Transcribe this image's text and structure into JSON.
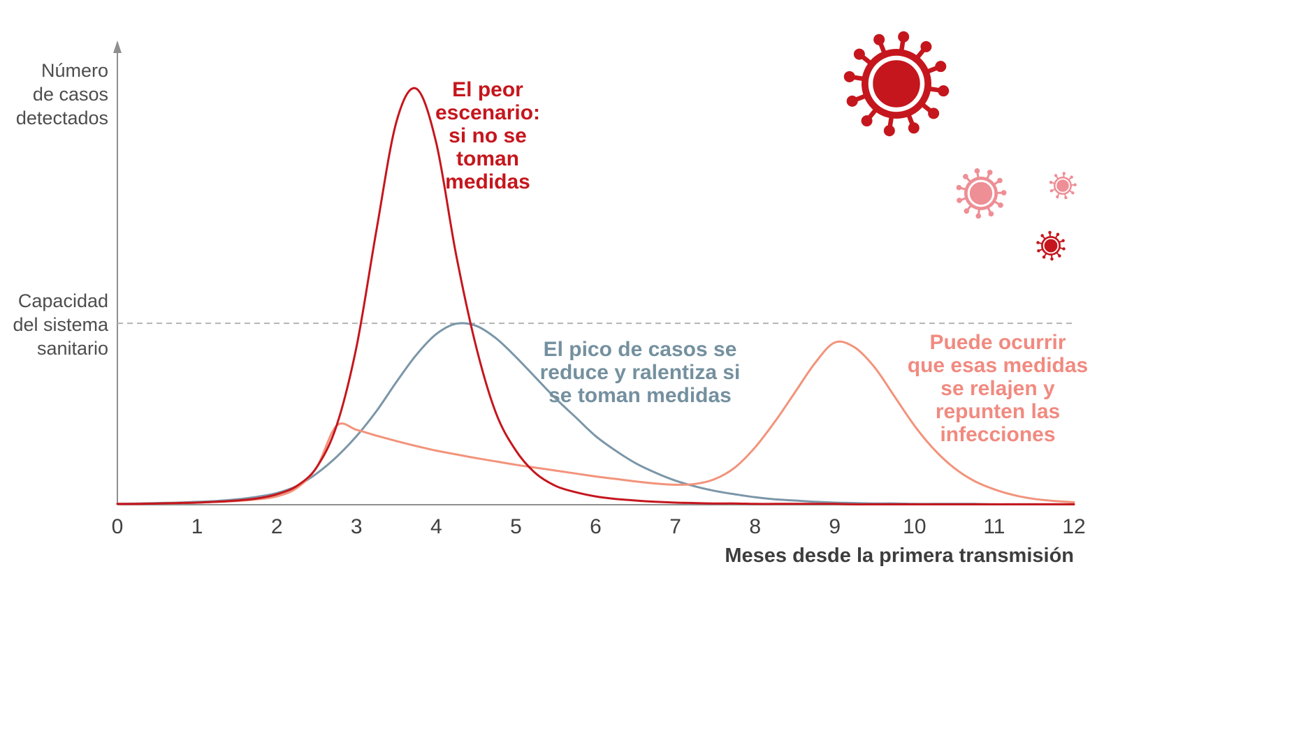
{
  "chart_data": {
    "type": "line",
    "title": "",
    "ylabel": "Número\nde casos\ndetectados",
    "xlabel": "Meses desde la primera transmisión",
    "xlim": [
      0,
      12
    ],
    "ylim": [
      0,
      1.1
    ],
    "x_ticks": [
      0,
      1,
      2,
      3,
      4,
      5,
      6,
      7,
      8,
      9,
      10,
      11,
      12
    ],
    "grid": false,
    "legend_position": "none",
    "axis_color": "#8f8f8f",
    "tick_label_color": "#404040",
    "capacity_line": {
      "label": "Capacidad\ndel sistema\nsanitario",
      "value": 0.436,
      "style": "dashed",
      "color": "#b3b3b3"
    },
    "x": [
      0,
      0.25,
      0.5,
      0.75,
      1,
      1.25,
      1.5,
      1.75,
      2,
      2.25,
      2.5,
      2.75,
      3,
      3.25,
      3.5,
      3.75,
      4,
      4.25,
      4.5,
      4.75,
      5,
      5.25,
      5.5,
      5.75,
      6,
      6.25,
      6.5,
      6.75,
      7,
      7.25,
      7.5,
      7.75,
      8,
      8.25,
      8.5,
      8.75,
      9,
      9.25,
      9.5,
      9.75,
      10,
      10.25,
      10.5,
      10.75,
      11,
      11.25,
      11.5,
      11.75,
      12
    ],
    "series": [
      {
        "name": "peor-escenario",
        "color": "#c5161d",
        "stroke_width": 3,
        "annotation": "El peor\nescenario:\nsi no se\ntoman\nmedidas",
        "annotation_color": "#c5161d",
        "values": [
          0.002,
          0.002,
          0.003,
          0.004,
          0.005,
          0.007,
          0.01,
          0.015,
          0.025,
          0.045,
          0.09,
          0.19,
          0.38,
          0.66,
          0.92,
          1.0,
          0.87,
          0.6,
          0.38,
          0.22,
          0.13,
          0.075,
          0.045,
          0.03,
          0.02,
          0.014,
          0.01,
          0.007,
          0.005,
          0.004,
          0.003,
          0.003,
          0.002,
          0.002,
          0.002,
          0.002,
          0.002,
          0.001,
          0.001,
          0.001,
          0.001,
          0.001,
          0.001,
          0.001,
          0.001,
          0.001,
          0.001,
          0.001,
          0.001
        ]
      },
      {
        "name": "con-medidas",
        "color": "#7b96a8",
        "stroke_width": 3,
        "annotation": "El pico de casos se\nreduce y ralentiza si\nse toman medidas",
        "annotation_color": "#74909f",
        "values": [
          0.002,
          0.003,
          0.004,
          0.005,
          0.007,
          0.009,
          0.013,
          0.019,
          0.028,
          0.045,
          0.075,
          0.115,
          0.165,
          0.225,
          0.295,
          0.36,
          0.41,
          0.435,
          0.43,
          0.4,
          0.355,
          0.305,
          0.255,
          0.21,
          0.165,
          0.13,
          0.1,
          0.077,
          0.058,
          0.044,
          0.033,
          0.025,
          0.018,
          0.013,
          0.01,
          0.007,
          0.005,
          0.004,
          0.003,
          0.003,
          0.002,
          0.002,
          0.002,
          0.002,
          0.001,
          0.001,
          0.001,
          0.001,
          0.001
        ]
      },
      {
        "name": "rebrote",
        "color": "#f2937b",
        "stroke_width": 3,
        "annotation": "Puede ocurrir\nque esas medidas\nse relajen y\nrepunten las\ninfecciones",
        "annotation_color": "#f18a80",
        "values": [
          0.002,
          0.002,
          0.003,
          0.004,
          0.005,
          0.007,
          0.009,
          0.013,
          0.02,
          0.04,
          0.09,
          0.19,
          0.18,
          0.166,
          0.153,
          0.141,
          0.13,
          0.121,
          0.112,
          0.104,
          0.096,
          0.089,
          0.082,
          0.075,
          0.068,
          0.062,
          0.056,
          0.051,
          0.048,
          0.05,
          0.062,
          0.09,
          0.138,
          0.2,
          0.27,
          0.34,
          0.39,
          0.378,
          0.33,
          0.26,
          0.19,
          0.132,
          0.088,
          0.057,
          0.037,
          0.023,
          0.014,
          0.009,
          0.006
        ]
      }
    ]
  },
  "icons": {
    "viruses": [
      {
        "name": "virus-icon-large-red",
        "color": "#c5161d"
      },
      {
        "name": "virus-icon-medium-pink",
        "color": "#ee8e95"
      },
      {
        "name": "virus-icon-small-pink",
        "color": "#ee8e95"
      },
      {
        "name": "virus-icon-small-red",
        "color": "#c5161d"
      }
    ]
  }
}
